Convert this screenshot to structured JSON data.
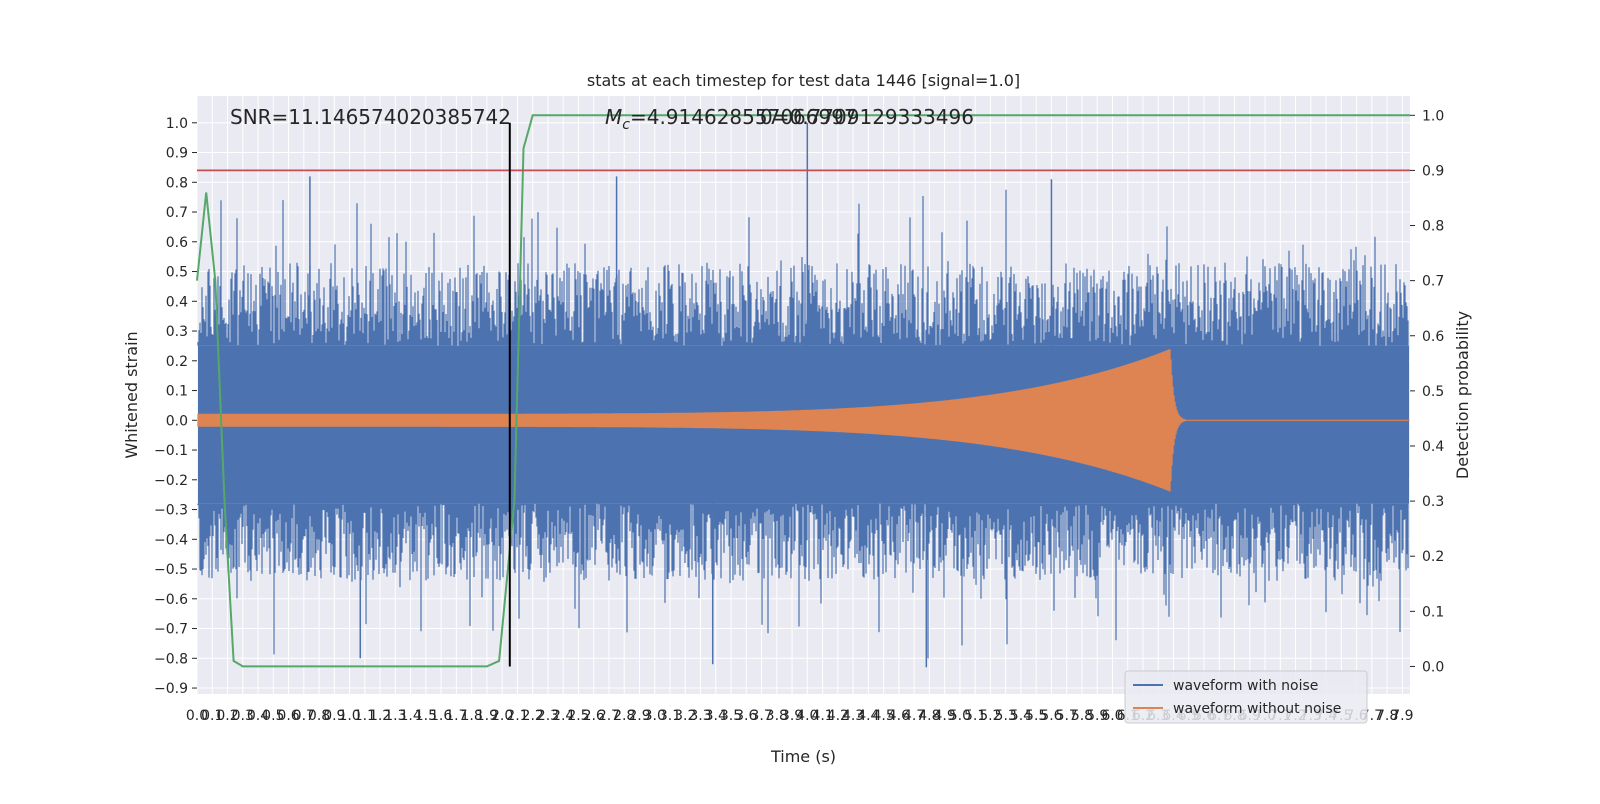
{
  "chart_data": {
    "type": "line",
    "title": "stats at each timestep for test data 1446 [signal=1.0]",
    "xlabel": "Time (s)",
    "ylabel_left": "Whitened strain",
    "ylabel_right": "Detection probability",
    "xlim": [
      0.0,
      7.95
    ],
    "ylim_left": [
      -0.92,
      1.09
    ],
    "ylim_right": [
      -0.05,
      1.035
    ],
    "x_ticks": [
      "0.0",
      "0.1",
      "0.2",
      "0.3",
      "0.4",
      "0.5",
      "0.6",
      "0.7",
      "0.8",
      "0.9",
      "1.0",
      "1.1",
      "1.2",
      "1.3",
      "1.4",
      "1.5",
      "1.6",
      "1.7",
      "1.8",
      "1.9",
      "2.0",
      "2.1",
      "2.2",
      "2.3",
      "2.4",
      "2.5",
      "2.6",
      "2.7",
      "2.8",
      "2.9",
      "3.0",
      "3.1",
      "3.2",
      "3.3",
      "3.4",
      "3.5",
      "3.6",
      "3.7",
      "3.8",
      "3.9",
      "4.0",
      "4.1",
      "4.2",
      "4.3",
      "4.4",
      "4.5",
      "4.6",
      "4.7",
      "4.8",
      "4.9",
      "5.0",
      "5.1",
      "5.2",
      "5.3",
      "5.4",
      "5.5",
      "5.6",
      "5.7",
      "5.8",
      "5.9",
      "6.0",
      "6.1",
      "6.2",
      "6.3",
      "6.4",
      "6.5",
      "6.6",
      "6.7",
      "6.8",
      "6.9",
      "7.0",
      "7.1",
      "7.2",
      "7.3",
      "7.4",
      "7.5",
      "7.6",
      "7.7",
      "7.8",
      "7.9"
    ],
    "y_ticks_left": [
      "1.0",
      "0.9",
      "0.8",
      "0.7",
      "0.6",
      "0.5",
      "0.4",
      "0.3",
      "0.2",
      "0.1",
      "0.0",
      "−0.1",
      "−0.2",
      "−0.3",
      "−0.4",
      "−0.5",
      "−0.6",
      "−0.7",
      "−0.8",
      "−0.9"
    ],
    "y_ticks_right": [
      "1.0",
      "0.9",
      "0.8",
      "0.7",
      "0.6",
      "0.5",
      "0.4",
      "0.3",
      "0.2",
      "0.1",
      "0.0"
    ],
    "annotations": {
      "snr": "SNR=11.146574020385742",
      "mc_symbol": "M",
      "mc_sub": "c",
      "mc_value": "=4.914628557066997",
      "overlap": "0=0.7709129333496"
    },
    "threshold_line": {
      "axis": "right",
      "y": 0.9,
      "color": "#c44e52"
    },
    "vertical_marker": {
      "x": 2.05,
      "color": "#000000"
    },
    "noise_envelope": {
      "description_free": true,
      "base_upper": 0.25,
      "base_lower": -0.28,
      "peak_max": 1.0,
      "peak_min": -0.83
    },
    "chirp": {
      "t_start": 0.0,
      "t_merger": 6.38,
      "amp_start": 0.022,
      "amp_peak": 0.24,
      "ringdown_end": 6.5
    },
    "series": [
      {
        "name": "waveform with noise",
        "color": "#4c72b0",
        "axis": "left"
      },
      {
        "name": "waveform without noise",
        "color": "#dd8452",
        "axis": "left"
      },
      {
        "name": "",
        "color": "#55a868",
        "axis": "right",
        "x": [
          0.0,
          0.06,
          0.12,
          0.18,
          0.24,
          0.3,
          1.0,
          1.5,
          1.9,
          1.98,
          2.08,
          2.14,
          2.2,
          2.3,
          7.95
        ],
        "y": [
          0.7,
          0.86,
          0.7,
          0.3,
          0.01,
          0.0,
          0.0,
          0.0,
          0.0,
          0.01,
          0.3,
          0.94,
          1.0,
          1.0,
          1.0
        ]
      }
    ],
    "legend": {
      "placement": "lower-right",
      "entries": [
        "waveform with noise",
        "waveform without noise"
      ]
    },
    "grid": true
  }
}
